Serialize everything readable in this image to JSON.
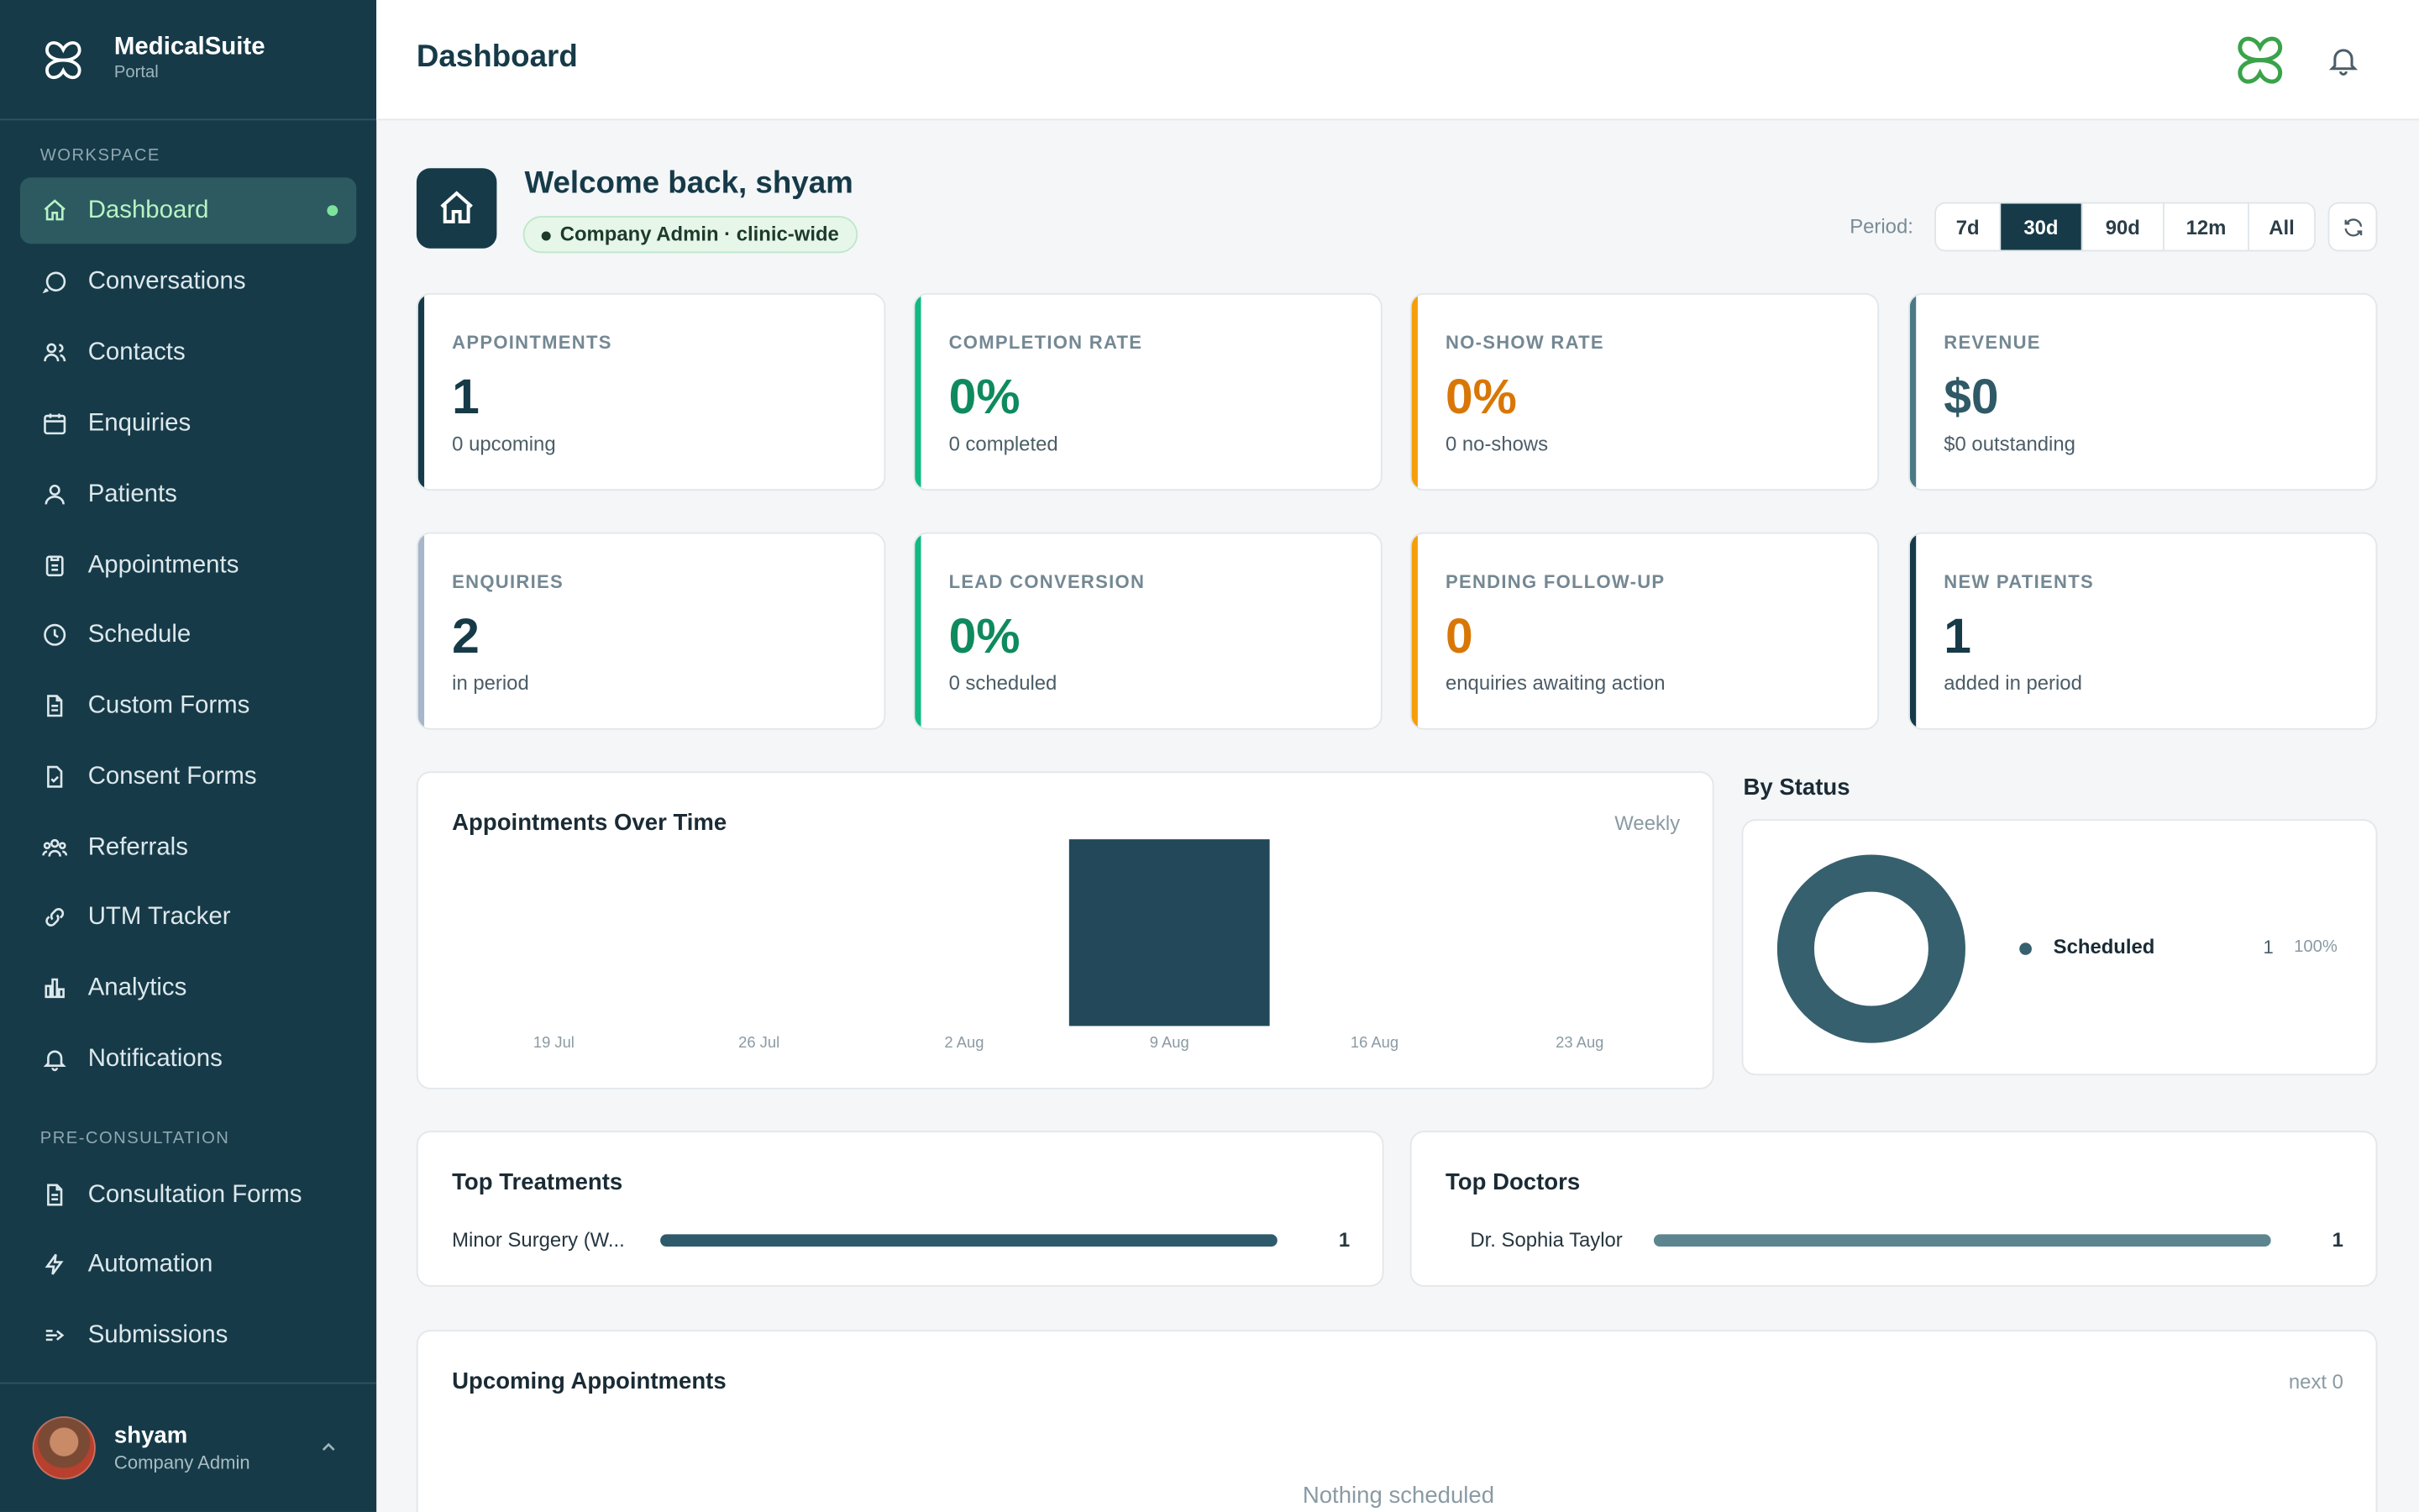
{
  "app": {
    "name": "MedicalSuite",
    "subtitle": "Portal"
  },
  "sidebar": {
    "workspace_label": "WORKSPACE",
    "items": [
      {
        "label": "Dashboard",
        "icon": "home-icon",
        "active": true
      },
      {
        "label": "Conversations",
        "icon": "chat-bubble-icon"
      },
      {
        "label": "Contacts",
        "icon": "users-icon"
      },
      {
        "label": "Enquiries",
        "icon": "calendar-icon"
      },
      {
        "label": "Patients",
        "icon": "user-icon"
      },
      {
        "label": "Appointments",
        "icon": "clipboard-icon"
      },
      {
        "label": "Schedule",
        "icon": "clock-icon"
      },
      {
        "label": "Custom Forms",
        "icon": "document-icon"
      },
      {
        "label": "Consent Forms",
        "icon": "document-check-icon"
      },
      {
        "label": "Referrals",
        "icon": "user-group-icon"
      },
      {
        "label": "UTM Tracker",
        "icon": "link-icon"
      },
      {
        "label": "Analytics",
        "icon": "bar-chart-icon"
      },
      {
        "label": "Notifications",
        "icon": "bell-icon"
      }
    ],
    "preconsult_label": "PRE-CONSULTATION",
    "preconsult_items": [
      {
        "label": "Consultation Forms",
        "icon": "document-icon"
      },
      {
        "label": "Automation",
        "icon": "bolt-icon"
      },
      {
        "label": "Submissions",
        "icon": "submit-arrow-icon"
      }
    ],
    "user": {
      "name": "shyam",
      "role": "Company Admin"
    }
  },
  "header": {
    "title": "Dashboard"
  },
  "welcome": {
    "title": "Welcome back, shyam",
    "badge": "Company Admin · clinic-wide"
  },
  "period": {
    "label": "Period:",
    "options": [
      "7d",
      "30d",
      "90d",
      "12m",
      "All"
    ],
    "selected": "30d"
  },
  "kpis": [
    {
      "label": "APPOINTMENTS",
      "value": "1",
      "sub": "0 upcoming",
      "accent": "#163a48",
      "value_color": "#163a48"
    },
    {
      "label": "COMPLETION RATE",
      "value": "0%",
      "sub": "0 completed",
      "accent": "#12b981",
      "value_color": "#0f8a5f"
    },
    {
      "label": "NO-SHOW RATE",
      "value": "0%",
      "sub": "0 no-shows",
      "accent": "#f59e0b",
      "value_color": "#d97706"
    },
    {
      "label": "REVENUE",
      "value": "$0",
      "sub": "$0 outstanding",
      "accent": "#4b7a85",
      "value_color": "#2f5966"
    },
    {
      "label": "ENQUIRIES",
      "value": "2",
      "sub": "in period",
      "accent": "#a7b6c9",
      "value_color": "#163a48"
    },
    {
      "label": "LEAD CONVERSION",
      "value": "0%",
      "sub": "0 scheduled",
      "accent": "#12b981",
      "value_color": "#0f8a5f"
    },
    {
      "label": "PENDING FOLLOW-UP",
      "value": "0",
      "sub": "enquiries awaiting action",
      "accent": "#f59e0b",
      "value_color": "#d97706"
    },
    {
      "label": "NEW PATIENTS",
      "value": "1",
      "sub": "added in period",
      "accent": "#163a48",
      "value_color": "#163a48"
    }
  ],
  "appointments_chart": {
    "title": "Appointments Over Time",
    "granularity": "Weekly",
    "chart_data": {
      "type": "bar",
      "categories": [
        "19 Jul",
        "26 Jul",
        "2 Aug",
        "9 Aug",
        "16 Aug",
        "23 Aug"
      ],
      "values": [
        0,
        0,
        0,
        1,
        0,
        0
      ],
      "ylim": [
        0,
        1
      ],
      "color": "#22485a"
    }
  },
  "by_status": {
    "title": "By Status",
    "chart_data": {
      "type": "pie",
      "categories": [
        "Scheduled"
      ],
      "values": [
        1
      ],
      "labels": [
        "1"
      ],
      "percents": [
        "100%"
      ],
      "colors": [
        "#37606e"
      ]
    }
  },
  "top_treatments": {
    "title": "Top Treatments",
    "items": [
      {
        "label": "Minor Surgery (W...",
        "count": "1",
        "fill": 1.0,
        "color": "#2f5a6b"
      }
    ]
  },
  "top_doctors": {
    "title": "Top Doctors",
    "items": [
      {
        "label": "Dr. Sophia Taylor",
        "count": "1",
        "fill": 1.0,
        "color": "#5c8590"
      }
    ]
  },
  "upcoming": {
    "title": "Upcoming Appointments",
    "meta": "next 0",
    "empty": "Nothing scheduled"
  }
}
